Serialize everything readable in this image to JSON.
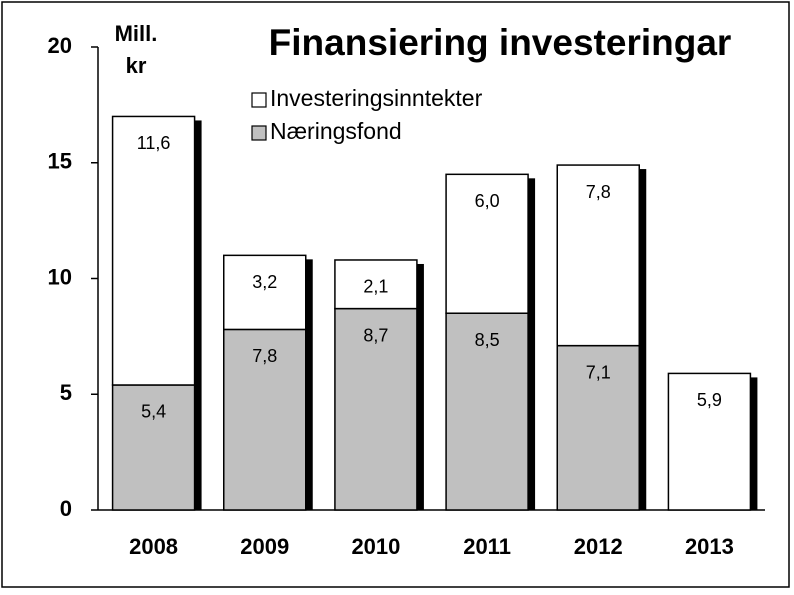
{
  "chart_data": {
    "type": "stacked_bar",
    "title": "Finansiering investeringar",
    "y_label": [
      "Mill.",
      "kr"
    ],
    "categories": [
      "2008",
      "2009",
      "2010",
      "2011",
      "2012",
      "2013"
    ],
    "series": [
      {
        "name": "Næringsfond",
        "color": "#c0c0c0",
        "values": [
          5.4,
          7.8,
          8.7,
          8.5,
          7.1,
          null
        ],
        "value_labels": [
          "5,4",
          "7,8",
          "8,7",
          "8,5",
          "7,1",
          null
        ]
      },
      {
        "name": "Investeringsinntekter",
        "color": "#ffffff",
        "values": [
          11.6,
          3.2,
          2.1,
          6.0,
          7.8,
          5.9
        ],
        "value_labels": [
          "11,6",
          "3,2",
          "2,1",
          "6,0",
          "7,8",
          "5,9"
        ]
      }
    ],
    "ylim": [
      0,
      20
    ],
    "yticks": [
      0,
      5,
      10,
      15,
      20
    ],
    "grid": false,
    "legend": "top"
  }
}
